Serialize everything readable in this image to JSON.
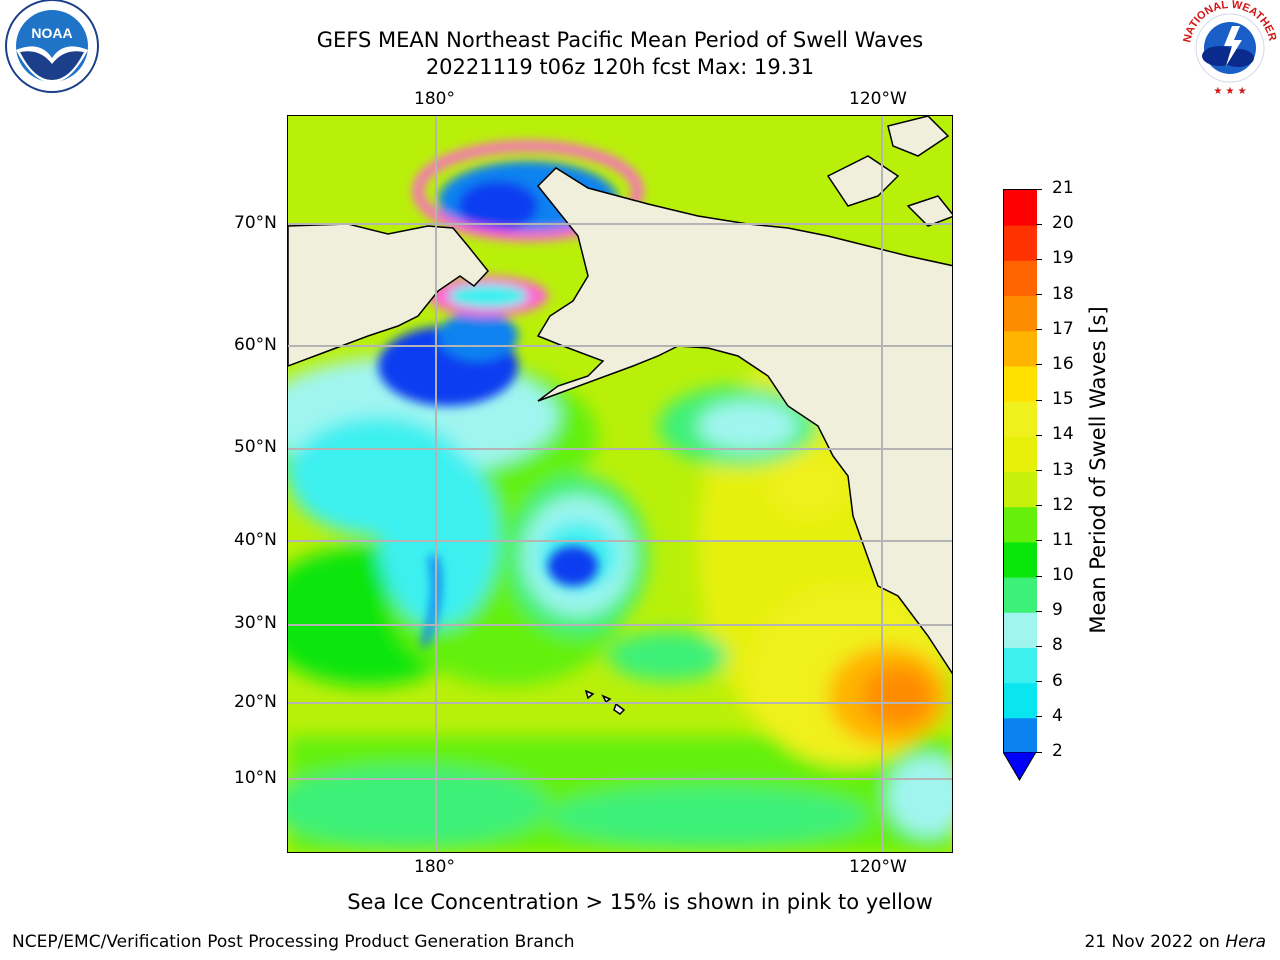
{
  "title": {
    "line1": "GEFS MEAN Northeast Pacific Mean Period of Swell Waves",
    "line2": "20221119 t06z 120h fcst   Max: 19.31"
  },
  "logos": {
    "noaa": {
      "text": "NOAA",
      "ring": "NATIONAL OCEANIC AND ATMOSPHERIC ADMINISTRATION · U.S. DEPARTMENT OF COMMERCE"
    },
    "nws": {
      "ring": "NATIONAL WEATHER SERVICE"
    }
  },
  "map": {
    "lon_labels": [
      "180°",
      "120°W"
    ],
    "lat_labels": [
      "70°N",
      "60°N",
      "50°N",
      "40°N",
      "30°N",
      "20°N",
      "10°N"
    ]
  },
  "colorbar": {
    "label": "Mean Period of Swell Waves [s]",
    "ticks": [
      "2",
      "4",
      "6",
      "8",
      "9",
      "10",
      "11",
      "12",
      "13",
      "14",
      "15",
      "16",
      "17",
      "18",
      "19",
      "20",
      "21"
    ],
    "colors": [
      "#0a3cf0",
      "#0a82f0",
      "#0ae6f0",
      "#3cf0f0",
      "#a0f5f0",
      "#3cf078",
      "#0ae60a",
      "#64f00a",
      "#c8f00a",
      "#e6f00a",
      "#f0f01e",
      "#ffe100",
      "#ffb400",
      "#ff8c00",
      "#ff6400",
      "#ff3200",
      "#ff0000"
    ],
    "min_arrow_color": "#0000ff"
  },
  "notes": {
    "ice": "Sea Ice Concentration > 15% is shown in pink to yellow"
  },
  "footer": {
    "left": "NCEP/EMC/Verification Post Processing Product Generation Branch",
    "right_date": "21 Nov 2022 on ",
    "right_host": "Hera"
  }
}
